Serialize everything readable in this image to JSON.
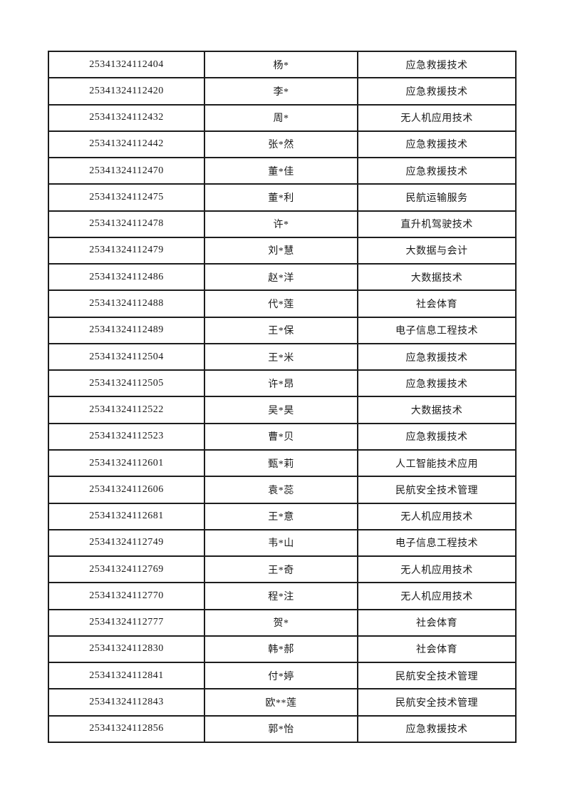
{
  "page": {
    "background_color": "#ffffff",
    "text_color": "#1a1a1a",
    "border_color": "#1d1d1d"
  },
  "table": {
    "rows": [
      {
        "id": "25341324112404",
        "name": "杨*",
        "major": "应急救援技术"
      },
      {
        "id": "25341324112420",
        "name": "李*",
        "major": "应急救援技术"
      },
      {
        "id": "25341324112432",
        "name": "周*",
        "major": "无人机应用技术"
      },
      {
        "id": "25341324112442",
        "name": "张*然",
        "major": "应急救援技术"
      },
      {
        "id": "25341324112470",
        "name": "董*佳",
        "major": "应急救援技术"
      },
      {
        "id": "25341324112475",
        "name": "董*利",
        "major": "民航运输服务"
      },
      {
        "id": "25341324112478",
        "name": "许*",
        "major": "直升机驾驶技术"
      },
      {
        "id": "25341324112479",
        "name": "刘*慧",
        "major": "大数据与会计"
      },
      {
        "id": "25341324112486",
        "name": "赵*洋",
        "major": "大数据技术"
      },
      {
        "id": "25341324112488",
        "name": "代*莲",
        "major": "社会体育"
      },
      {
        "id": "25341324112489",
        "name": "王*保",
        "major": "电子信息工程技术"
      },
      {
        "id": "25341324112504",
        "name": "王*米",
        "major": "应急救援技术"
      },
      {
        "id": "25341324112505",
        "name": "许*昂",
        "major": "应急救援技术"
      },
      {
        "id": "25341324112522",
        "name": "吴*昊",
        "major": "大数据技术"
      },
      {
        "id": "25341324112523",
        "name": "曹*贝",
        "major": "应急救援技术"
      },
      {
        "id": "25341324112601",
        "name": "甄*莉",
        "major": "人工智能技术应用"
      },
      {
        "id": "25341324112606",
        "name": "袁*蕊",
        "major": "民航安全技术管理"
      },
      {
        "id": "25341324112681",
        "name": "王*意",
        "major": "无人机应用技术"
      },
      {
        "id": "25341324112749",
        "name": "韦*山",
        "major": "电子信息工程技术"
      },
      {
        "id": "25341324112769",
        "name": "王*奇",
        "major": "无人机应用技术"
      },
      {
        "id": "25341324112770",
        "name": "程*注",
        "major": "无人机应用技术"
      },
      {
        "id": "25341324112777",
        "name": "贺*",
        "major": "社会体育"
      },
      {
        "id": "25341324112830",
        "name": "韩*郝",
        "major": "社会体育"
      },
      {
        "id": "25341324112841",
        "name": "付*婷",
        "major": "民航安全技术管理"
      },
      {
        "id": "25341324112843",
        "name": "欧**莲",
        "major": "民航安全技术管理"
      },
      {
        "id": "25341324112856",
        "name": "郭*怡",
        "major": "应急救援技术"
      }
    ]
  }
}
